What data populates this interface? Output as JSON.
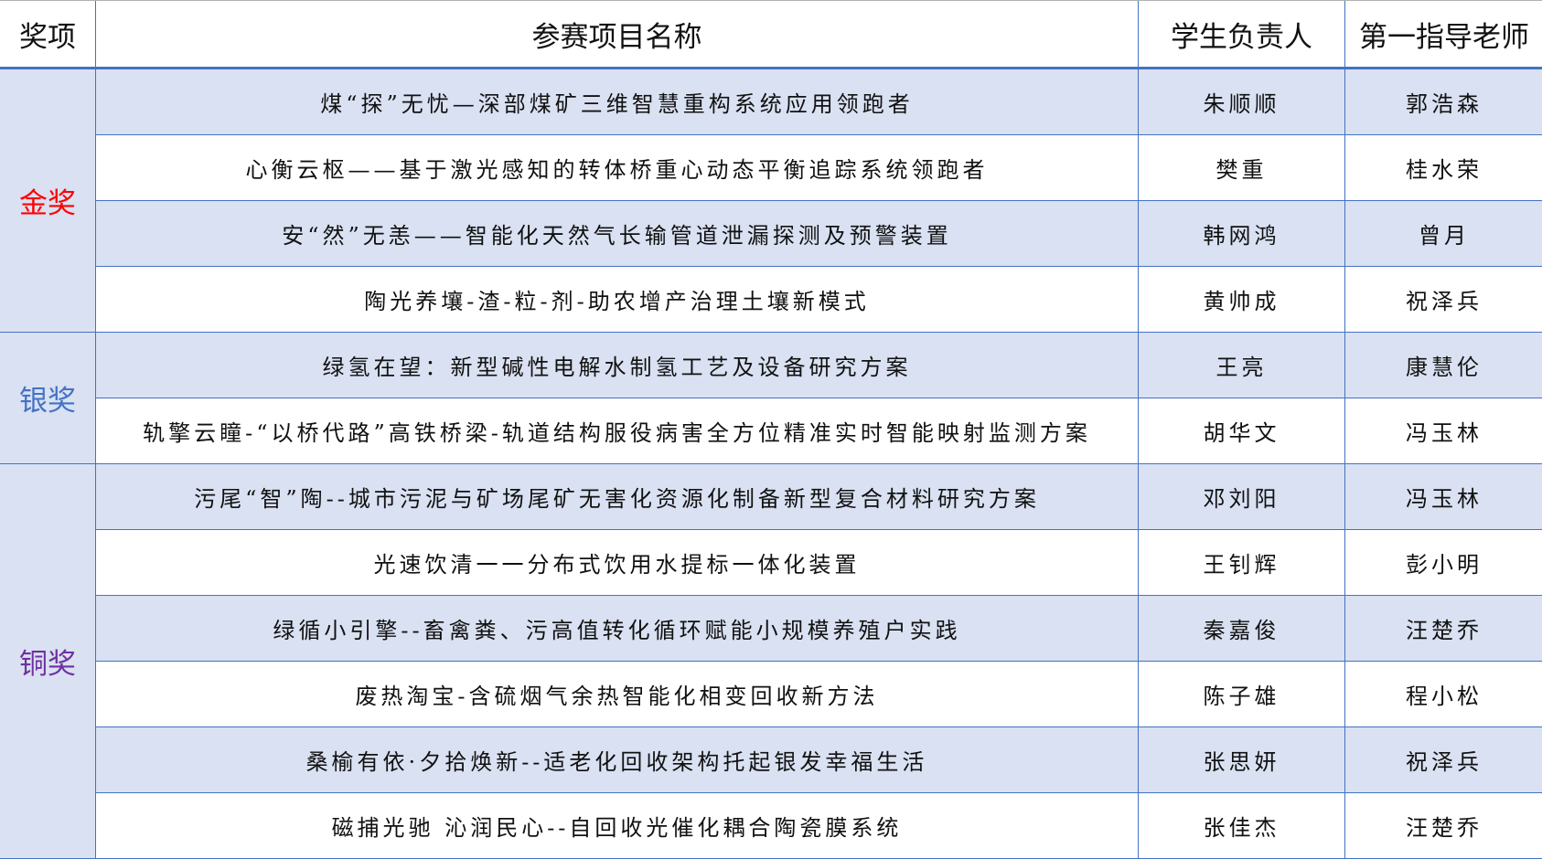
{
  "headers": [
    "奖项",
    "参赛项目名称",
    "学生负责人",
    "第一指导老师"
  ],
  "award_colors": {
    "gold": "#FF0000",
    "silver": "#4472C4",
    "bronze": "#7030A0"
  },
  "colors": {
    "border": "#4472C4",
    "shade": "#D9E1F2"
  },
  "groups": [
    {
      "award": "金奖",
      "rows": [
        {
          "project": "煤“探”无忧—深部煤矿三维智慧重构系统应用领跑者",
          "student": "朱顺顺",
          "teacher": "郭浩森"
        },
        {
          "project": "心衡云枢——基于激光感知的转体桥重心动态平衡追踪系统领跑者",
          "student": "樊重",
          "teacher": "桂水荣"
        },
        {
          "project": "安“然”无恙——智能化天然气长输管道泄漏探测及预警装置",
          "student": "韩网鸿",
          "teacher": "曾月"
        },
        {
          "project": "陶光养壤-渣-粒-剂-助农增产治理土壤新模式",
          "student": "黄帅成",
          "teacher": "祝泽兵"
        }
      ]
    },
    {
      "award": "银奖",
      "rows": [
        {
          "project": "绿氢在望：新型碱性电解水制氢工艺及设备研究方案",
          "student": "王亮",
          "teacher": "康慧伦"
        },
        {
          "project": "轨擎云瞳-“以桥代路”高铁桥梁-轨道结构服役病害全方位精准实时智能映射监测方案",
          "student": "胡华文",
          "teacher": "冯玉林"
        }
      ]
    },
    {
      "award": "铜奖",
      "rows": [
        {
          "project": "污尾“智”陶--城市污泥与矿场尾矿无害化资源化制备新型复合材料研究方案",
          "student": "邓刘阳",
          "teacher": "冯玉林"
        },
        {
          "project": "光速饮清一一分布式饮用水提标一体化装置",
          "student": "王钊辉",
          "teacher": "彭小明"
        },
        {
          "project": "绿循小引擎--畜禽粪、污高值转化循环赋能小规模养殖户实践",
          "student": "秦嘉俊",
          "teacher": "汪楚乔"
        },
        {
          "project": "废热淘宝-含硫烟气余热智能化相变回收新方法",
          "student": "陈子雄",
          "teacher": "程小松"
        },
        {
          "project": "桑榆有依·夕拾焕新--适老化回收架构托起银发幸福生活",
          "student": "张思妍",
          "teacher": "祝泽兵"
        },
        {
          "project": "磁捕光驰 沁润民心--自回收光催化耦合陶瓷膜系统",
          "student": "张佳杰",
          "teacher": "汪楚乔"
        }
      ]
    }
  ]
}
